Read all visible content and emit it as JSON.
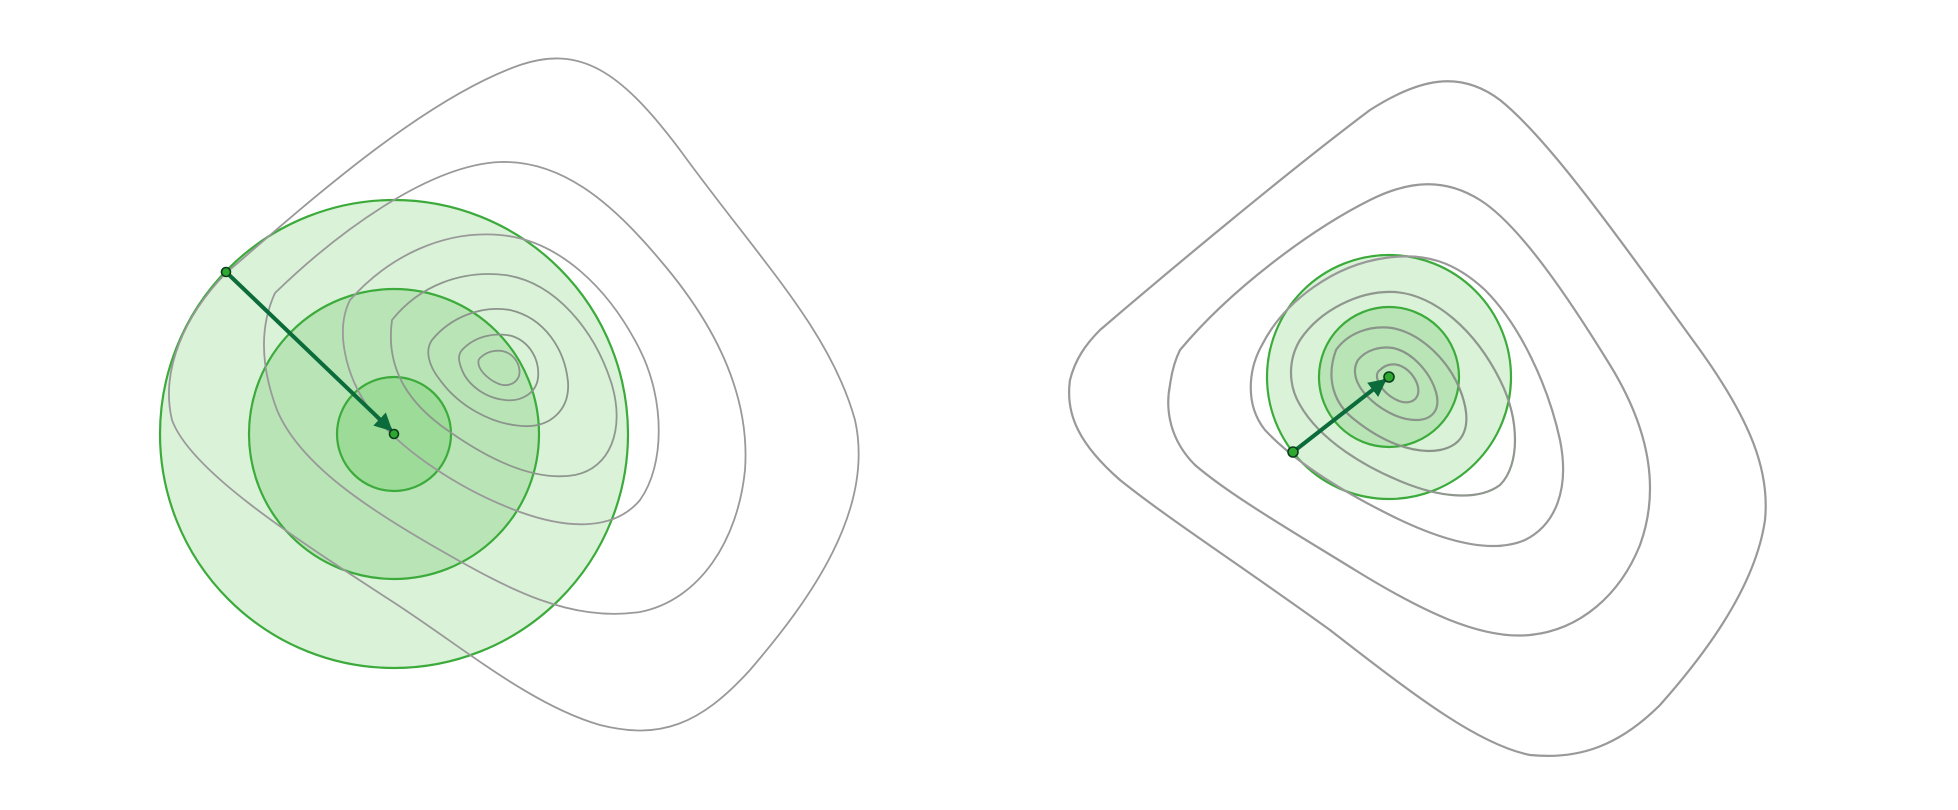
{
  "colors": {
    "contour": "#999999",
    "contour_inner": "#8a948a",
    "ball_stroke": "#3cab3c",
    "ball_fill_1": "#daf2d8",
    "ball_fill_2": "#b9e5b6",
    "ball_fill_3": "#9cdb98",
    "arrow": "#0b6b3a",
    "point_fill": "#2ea82e",
    "point_stroke": "#0b3d1e"
  },
  "panels": [
    {
      "name": "left-panel",
      "contour_levels": 7,
      "ball_count": 3,
      "step_count": 1
    },
    {
      "name": "right-panel",
      "contour_levels": 7,
      "ball_count": 3,
      "step_count": 1
    }
  ]
}
